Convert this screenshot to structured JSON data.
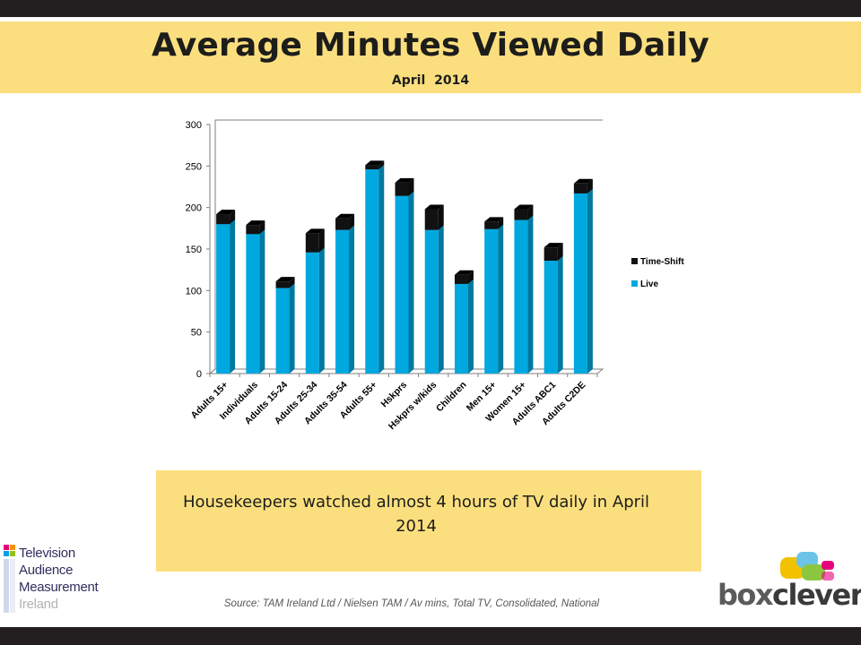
{
  "slide": {
    "title": "Average Minutes Viewed Daily",
    "subtitle": "April  2014",
    "callout": "Housekeepers watched almost 4 hours of TV daily in April 2014",
    "source": "Source: TAM Ireland Ltd / Nielsen TAM / Av mins, Total TV, Consolidated, National"
  },
  "logos": {
    "tam": {
      "lines": [
        "Television",
        "Audience",
        "Measurement",
        "Ireland"
      ]
    },
    "boxclever": {
      "part1": "box",
      "part2": "clever"
    }
  },
  "colors": {
    "live": "#00a8e0",
    "timeshift": "#111111",
    "band": "#fbdf7e",
    "bar_dark": "#231f20"
  },
  "chart_data": {
    "type": "bar",
    "stacked": true,
    "style": "3d",
    "categories": [
      "Adults 15+",
      "Individuals",
      "Adults 15-24",
      "Adults 25-34",
      "Adults 35-54",
      "Adults 55+",
      "Hskprs",
      "Hskprs w/kids",
      "Children",
      "Men 15+",
      "Women 15+",
      "Adults ABC1",
      "Adults C2DE"
    ],
    "series": [
      {
        "name": "Live",
        "values": [
          180,
          168,
          103,
          146,
          173,
          246,
          214,
          173,
          108,
          174,
          185,
          136,
          217
        ]
      },
      {
        "name": "Time-Shift",
        "values": [
          12,
          11,
          8,
          23,
          14,
          5,
          16,
          25,
          11,
          9,
          13,
          16,
          12
        ]
      }
    ],
    "legend_order": [
      "Time-Shift",
      "Live"
    ],
    "legend_position": "right",
    "ylim": [
      0,
      300
    ],
    "yticks": [
      0,
      50,
      100,
      150,
      200,
      250,
      300
    ],
    "grid": false
  }
}
